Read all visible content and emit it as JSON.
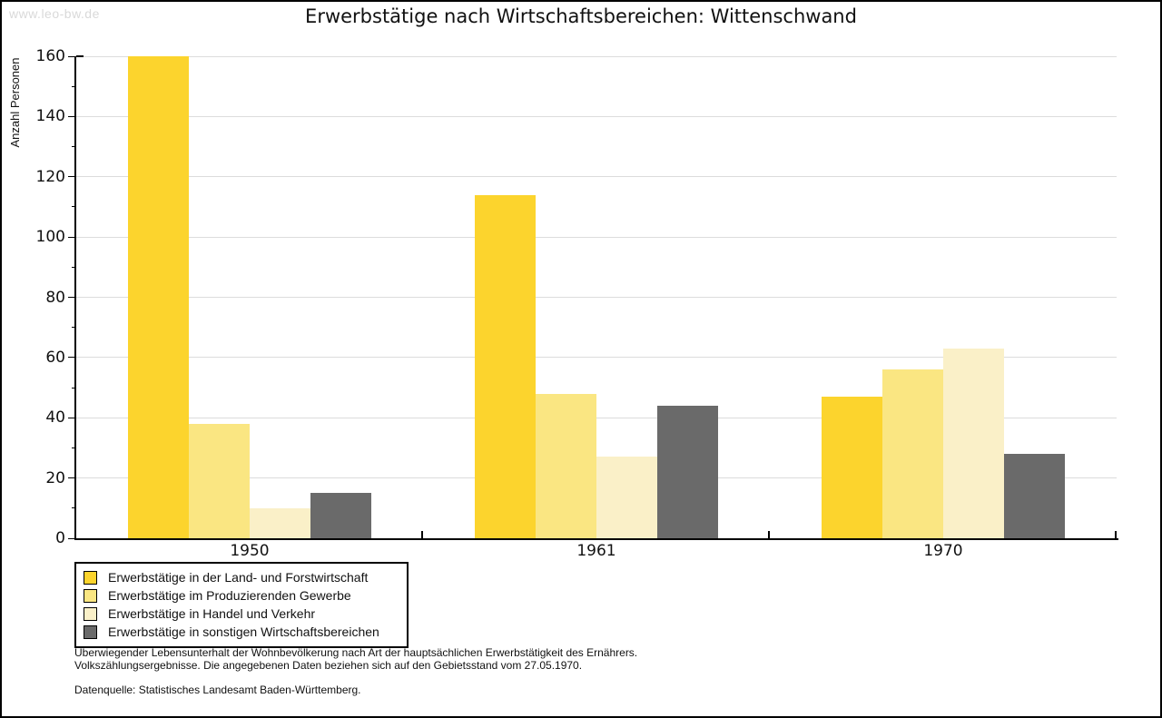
{
  "watermark": "www.leo-bw.de",
  "chart_data": {
    "type": "bar",
    "title": "Erwerbstätige nach Wirtschaftsbereichen: Wittenschwand",
    "ylabel": "Anzahl Personen",
    "xlabel": "",
    "categories": [
      "1950",
      "1961",
      "1970"
    ],
    "ylim": [
      0,
      160
    ],
    "ytick_step": 20,
    "minor_tick_step": 10,
    "grid": true,
    "legend_position": "bottom-left",
    "series": [
      {
        "name": "Erwerbstätige in der Land- und Forstwirtschaft",
        "color": "#FCD42D",
        "values": [
          160,
          114,
          47
        ]
      },
      {
        "name": "Erwerbstätige im Produzierenden Gewerbe",
        "color": "#FAE682",
        "values": [
          38,
          48,
          56
        ]
      },
      {
        "name": "Erwerbstätige in Handel und Verkehr",
        "color": "#FAF0C8",
        "values": [
          10,
          27,
          63
        ]
      },
      {
        "name": "Erwerbstätige in sonstigen Wirtschaftsbereichen",
        "color": "#6A6A6A",
        "values": [
          15,
          44,
          28
        ]
      }
    ]
  },
  "notes": {
    "line1": "Überwiegender Lebensunterhalt der Wohnbevölkerung nach Art der hauptsächlichen Erwerbstätigkeit des Ernährers.",
    "line2": "Volkszählungsergebnisse. Die angegebenen Daten beziehen sich auf den Gebietsstand vom 27.05.1970.",
    "source": "Datenquelle: Statistisches Landesamt Baden-Württemberg."
  },
  "colors": {
    "grid": "#DCDCDC",
    "axis": "#000000",
    "watermark": "#D9D9D9",
    "background": "#FFFFFF"
  }
}
